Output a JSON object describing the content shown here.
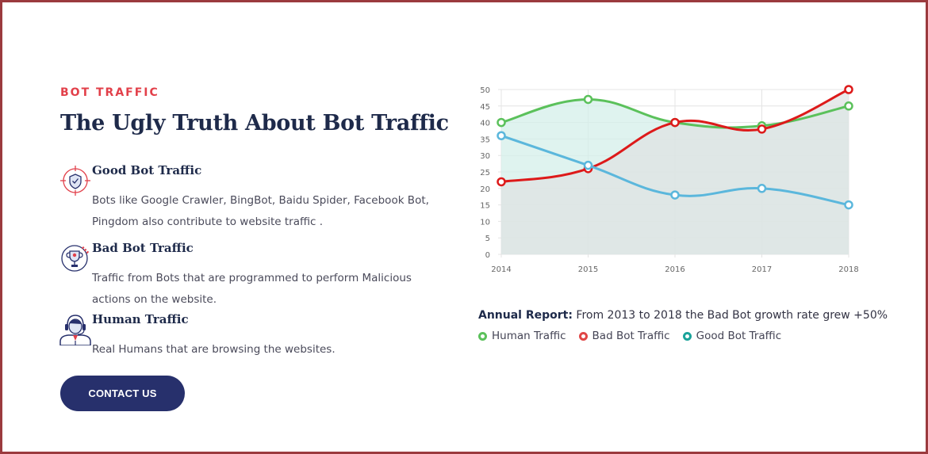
{
  "section": {
    "eyebrow": "BOT TRAFFIC",
    "title": "The Ugly Truth About Bot Traffic"
  },
  "features": [
    {
      "icon": "target-shield-icon",
      "title": "Good Bot Traffic",
      "text": "Bots like Google Crawler, BingBot, Baidu Spider, Facebook Bot, Pingdom also contribute to website traffic ."
    },
    {
      "icon": "trophy-badge-icon",
      "title": "Bad Bot Traffic",
      "text": "Traffic from Bots that are programmed to perform Malicious actions on the website."
    },
    {
      "icon": "support-agent-icon",
      "title": "Human Traffic",
      "text": "Real Humans that are browsing the websites."
    }
  ],
  "cta": {
    "label": "CONTACT US"
  },
  "report": {
    "label": "Annual Report:",
    "text": "From 2013 to 2018 the Bad Bot growth rate grew +50%"
  },
  "legend": [
    {
      "label": "Human Traffic",
      "color": "#5bc15b"
    },
    {
      "label": "Bad Bot Traffic",
      "color": "#e04646"
    },
    {
      "label": "Good Bot Traffic",
      "color": "#1aa39a"
    }
  ],
  "chart_data": {
    "type": "line",
    "x": [
      "2014",
      "2015",
      "2016",
      "2017",
      "2018"
    ],
    "ylim": [
      0,
      50
    ],
    "yticks": [
      0,
      5,
      10,
      15,
      20,
      25,
      30,
      35,
      40,
      45,
      50
    ],
    "grid": true,
    "series": [
      {
        "name": "Human Traffic",
        "color": "#5bc15b",
        "fill": "#d4efe9",
        "values": [
          40,
          47,
          40,
          39,
          45
        ]
      },
      {
        "name": "Bad Bot Traffic",
        "color": "#dd1a1a",
        "fill": "#dfe3e3",
        "values": [
          22,
          26,
          40,
          38,
          50
        ]
      },
      {
        "name": "Good Bot Traffic",
        "color": "#5bb7dc",
        "fill": null,
        "values": [
          36,
          27,
          18,
          20,
          15
        ]
      }
    ]
  }
}
